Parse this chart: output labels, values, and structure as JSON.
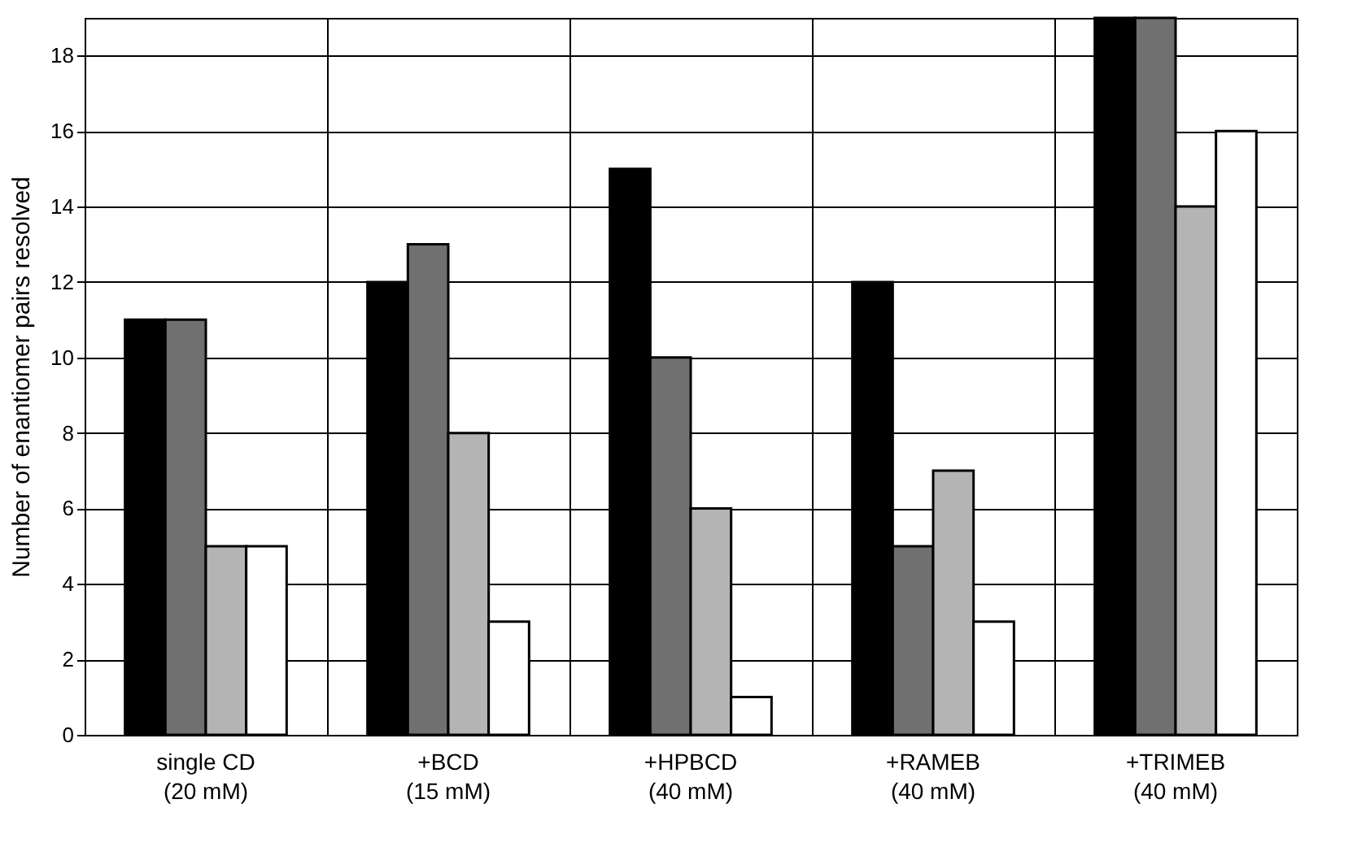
{
  "chart_data": {
    "type": "bar",
    "ylabel": "Number of enantiomer pairs resolved",
    "categories": [
      "single CD\n(20 mM)",
      "+BCD\n(15 mM)",
      "+HPBCD\n(40 mM)",
      "+RAMEB\n(40 mM)",
      "+TRIMEB\n(40 mM)"
    ],
    "series": [
      {
        "color": "#000000",
        "values": [
          11,
          12,
          15,
          12,
          19
        ]
      },
      {
        "color": "#707070",
        "values": [
          11,
          13,
          10,
          5,
          19
        ]
      },
      {
        "color": "#b4b4b4",
        "values": [
          5,
          8,
          6,
          7,
          14
        ]
      },
      {
        "color": "#ffffff",
        "values": [
          5,
          3,
          1,
          3,
          16
        ]
      }
    ],
    "ylim": [
      0,
      19
    ],
    "yticks": [
      0,
      2,
      4,
      6,
      8,
      10,
      12,
      14,
      16,
      18
    ],
    "grid": true,
    "legend": false
  }
}
